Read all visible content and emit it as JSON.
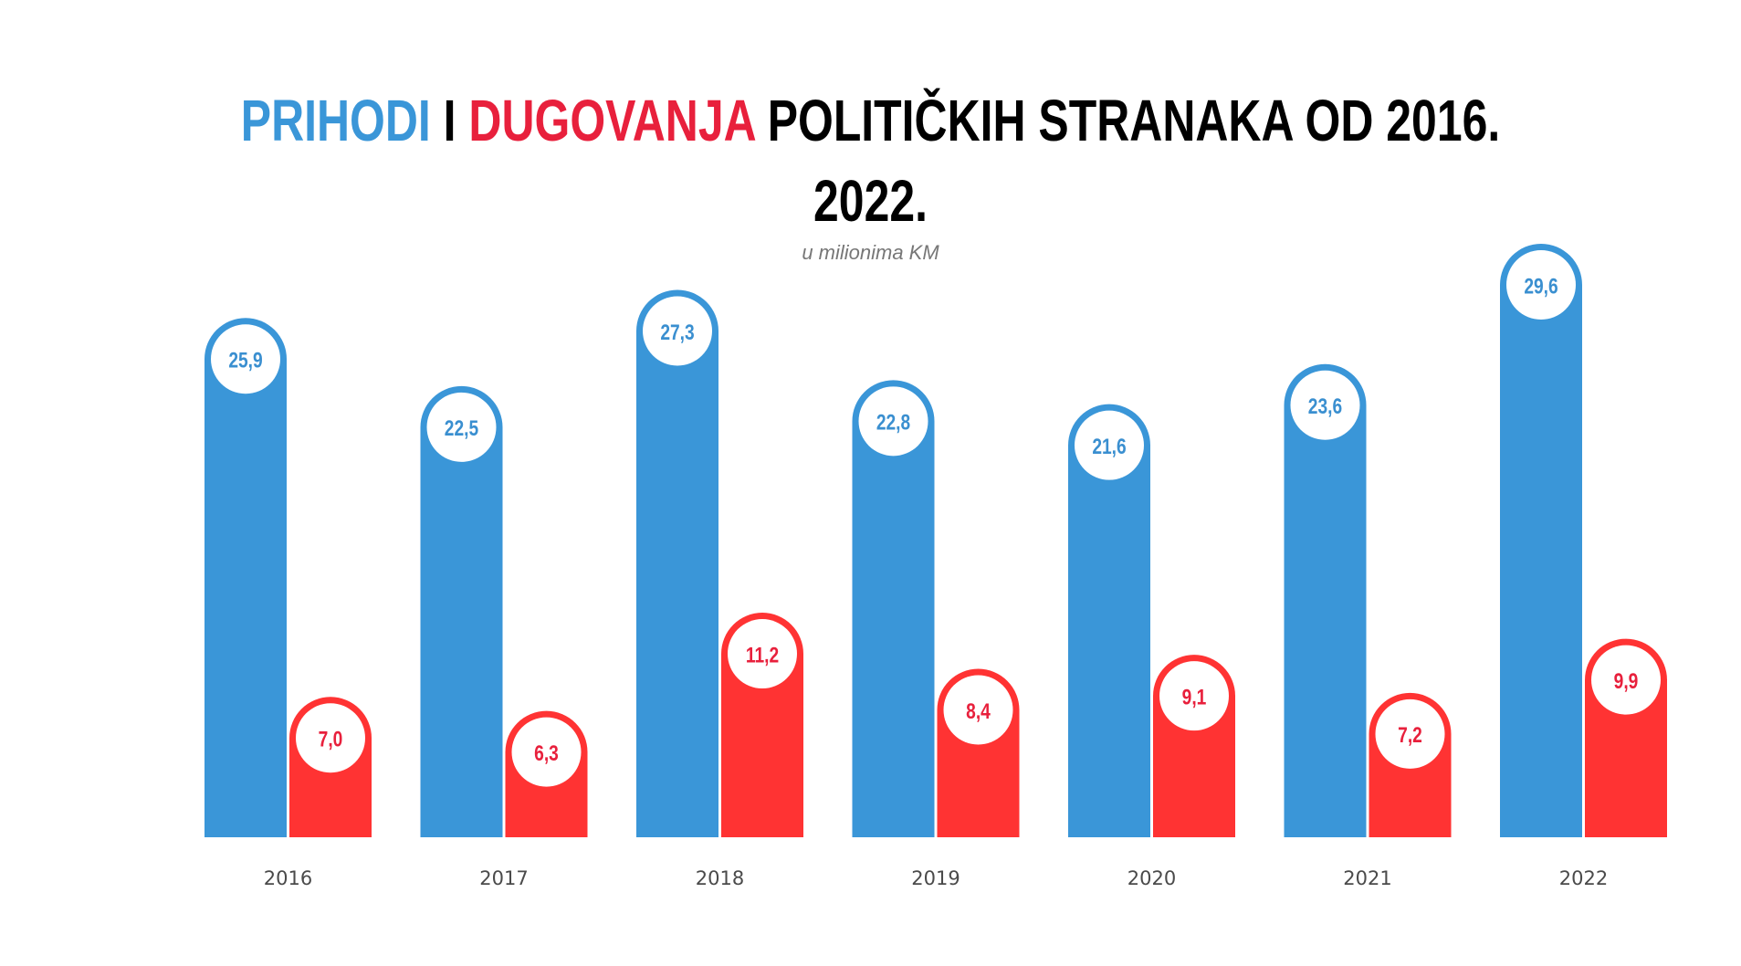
{
  "chart_data": {
    "type": "bar",
    "title": {
      "part1": "PRIHODI",
      "part2": " I ",
      "part3": "DUGOVANJA",
      "part4": " POLITIČKIH STRANAKA OD 2016.",
      "line2": "2022."
    },
    "subtitle": "u milionima KM",
    "categories": [
      "2016",
      "2017",
      "2018",
      "2019",
      "2020",
      "2021",
      "2022"
    ],
    "series": [
      {
        "name": "PRIHODI",
        "color": "#3a96d8",
        "label_color": "#3a8fd0",
        "values": [
          25.9,
          22.5,
          27.3,
          22.8,
          21.6,
          23.6,
          29.6
        ],
        "labels": [
          "25,9",
          "22,5",
          "27,3",
          "22,8",
          "21,6",
          "23,6",
          "29,6"
        ]
      },
      {
        "name": "DUGOVANJA",
        "color": "#ff3333",
        "label_color": "#e8203c",
        "values": [
          7.0,
          6.3,
          11.2,
          8.4,
          9.1,
          7.2,
          9.9
        ],
        "labels": [
          "7,0",
          "6,3",
          "11,2",
          "8,4",
          "9,1",
          "7,2",
          "9,9"
        ]
      }
    ],
    "ylim": [
      0,
      29.6
    ],
    "grid": false,
    "legend": "none"
  }
}
